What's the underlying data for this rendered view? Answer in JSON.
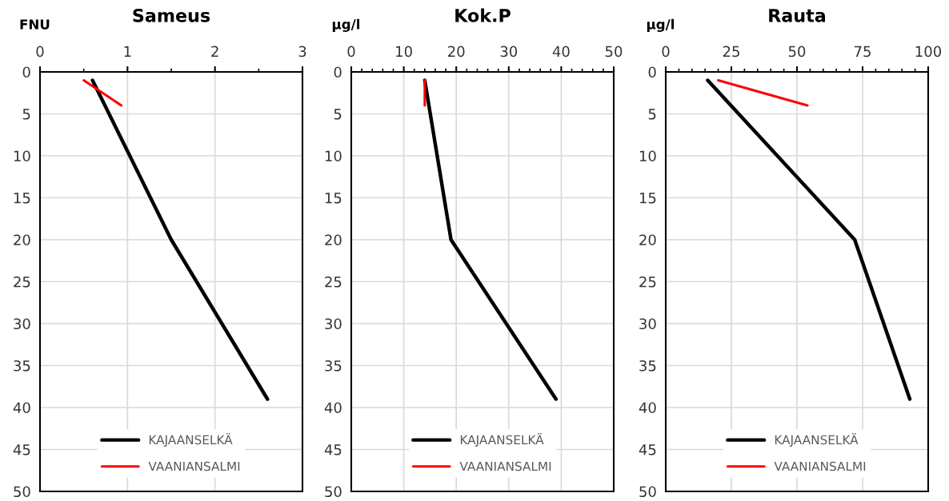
{
  "chart_data": [
    {
      "type": "line",
      "title": "Sameus",
      "ylabel": "FNU",
      "xlim": [
        0,
        3
      ],
      "xticks": [
        0,
        1,
        2,
        3,
        {
          "value": 0.5,
          "label": null
        },
        {
          "value": 1.5,
          "label": null
        },
        {
          "value": 2.5,
          "label": null
        }
      ],
      "ylim": [
        50,
        0
      ],
      "yticks": [
        0,
        5,
        10,
        15,
        20,
        25,
        30,
        35,
        40,
        45,
        50
      ],
      "grid": true,
      "legend": "bottom",
      "marker": "none",
      "line_style": "solid",
      "series": [
        {
          "name": "KAJAANSELKÄ",
          "color": "#000000",
          "x": [
            0.6,
            1.5,
            2.6
          ],
          "values": [
            1,
            20,
            39
          ]
        },
        {
          "name": "VAANIANSALMI",
          "color": "#ff0000",
          "x": [
            0.5,
            0.93
          ],
          "values": [
            1,
            4
          ]
        }
      ]
    },
    {
      "type": "line",
      "title": "Kok.P",
      "ylabel": "µg/l",
      "xlim": [
        0,
        50
      ],
      "xticks": [
        0,
        10,
        20,
        30,
        40,
        50,
        {
          "value": 2,
          "label": null
        },
        {
          "value": 4,
          "label": null
        },
        {
          "value": 6,
          "label": null
        },
        {
          "value": 8,
          "label": null
        },
        {
          "value": 12,
          "label": null
        },
        {
          "value": 14,
          "label": null
        },
        {
          "value": 16,
          "label": null
        },
        {
          "value": 18,
          "label": null
        },
        {
          "value": 22,
          "label": null
        },
        {
          "value": 24,
          "label": null
        },
        {
          "value": 26,
          "label": null
        },
        {
          "value": 28,
          "label": null
        },
        {
          "value": 32,
          "label": null
        },
        {
          "value": 34,
          "label": null
        },
        {
          "value": 36,
          "label": null
        },
        {
          "value": 38,
          "label": null
        },
        {
          "value": 42,
          "label": null
        },
        {
          "value": 44,
          "label": null
        },
        {
          "value": 46,
          "label": null
        },
        {
          "value": 48,
          "label": null
        }
      ],
      "ylim": [
        50,
        0
      ],
      "yticks": [
        0,
        5,
        10,
        15,
        20,
        25,
        30,
        35,
        40,
        45,
        50
      ],
      "grid": true,
      "legend": "bottom",
      "marker": "none",
      "line_style": "solid",
      "series": [
        {
          "name": "KAJAANSELKÄ",
          "color": "#000000",
          "x": [
            14,
            19,
            39
          ],
          "values": [
            1,
            20,
            39
          ]
        },
        {
          "name": "VAANIANSALMI",
          "color": "#ff0000",
          "x": [
            14,
            14
          ],
          "values": [
            1,
            4
          ]
        }
      ]
    },
    {
      "type": "line",
      "title": "Rauta",
      "ylabel": "µg/l",
      "xlim": [
        0,
        100
      ],
      "xticks": [
        0,
        25,
        50,
        75,
        100,
        {
          "value": 5,
          "label": null
        },
        {
          "value": 10,
          "label": null
        },
        {
          "value": 15,
          "label": null
        },
        {
          "value": 20,
          "label": null
        },
        {
          "value": 30,
          "label": null
        },
        {
          "value": 35,
          "label": null
        },
        {
          "value": 40,
          "label": null
        },
        {
          "value": 45,
          "label": null
        },
        {
          "value": 55,
          "label": null
        },
        {
          "value": 60,
          "label": null
        },
        {
          "value": 65,
          "label": null
        },
        {
          "value": 70,
          "label": null
        },
        {
          "value": 80,
          "label": null
        },
        {
          "value": 85,
          "label": null
        },
        {
          "value": 90,
          "label": null
        },
        {
          "value": 95,
          "label": null
        }
      ],
      "ylim": [
        50,
        0
      ],
      "yticks": [
        0,
        5,
        10,
        15,
        20,
        25,
        30,
        35,
        40,
        45,
        50
      ],
      "grid": true,
      "legend": "bottom",
      "marker": "none",
      "line_style": "solid",
      "series": [
        {
          "name": "KAJAANSELKÄ",
          "color": "#000000",
          "x": [
            16,
            72,
            93
          ],
          "values": [
            1,
            20,
            39
          ]
        },
        {
          "name": "VAANIANSALMI",
          "color": "#ff0000",
          "x": [
            20,
            54
          ],
          "values": [
            1,
            4
          ]
        }
      ]
    }
  ]
}
